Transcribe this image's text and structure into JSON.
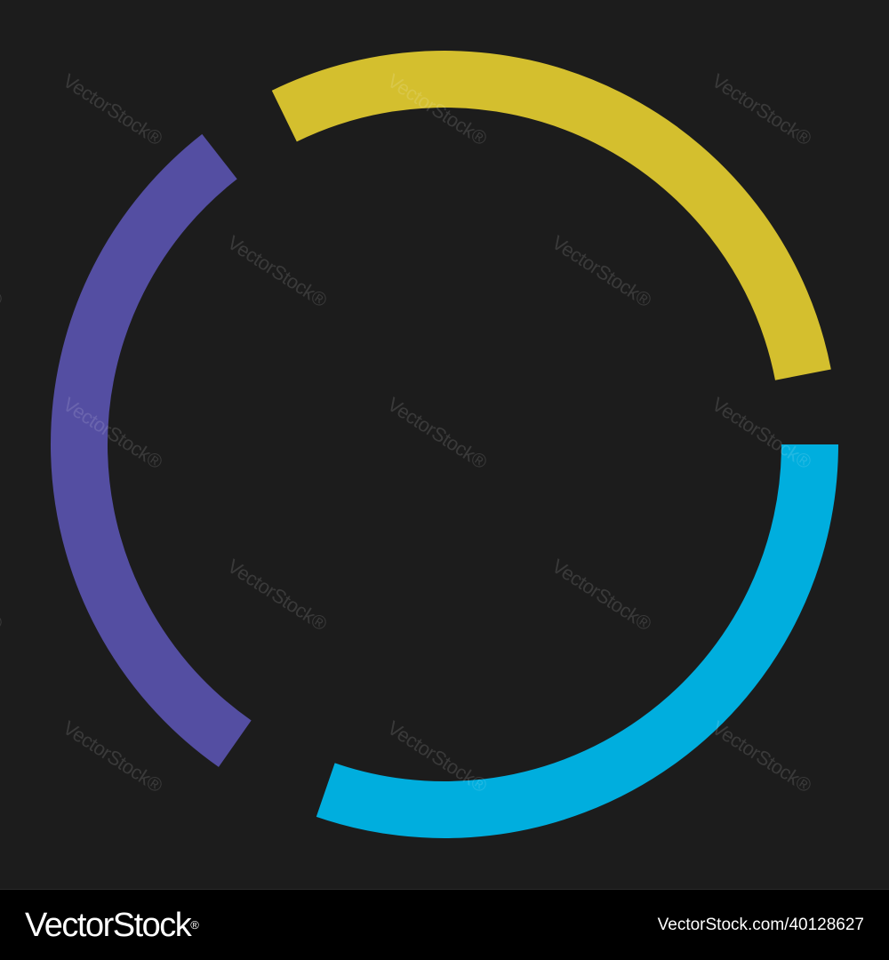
{
  "canvas": {
    "background": "#1c1c1c"
  },
  "ring": {
    "segments": [
      {
        "name": "yellow-arc",
        "color": "#d4bf2e"
      },
      {
        "name": "blue-arc",
        "color": "#00aede"
      },
      {
        "name": "purple-arc",
        "color": "#544ea2"
      }
    ]
  },
  "watermark": {
    "text": "VectorStock®"
  },
  "footer": {
    "background": "#000000",
    "logo_text": "VectorStock",
    "logo_mark": "®",
    "credit": "VectorStock.com/40128627"
  }
}
